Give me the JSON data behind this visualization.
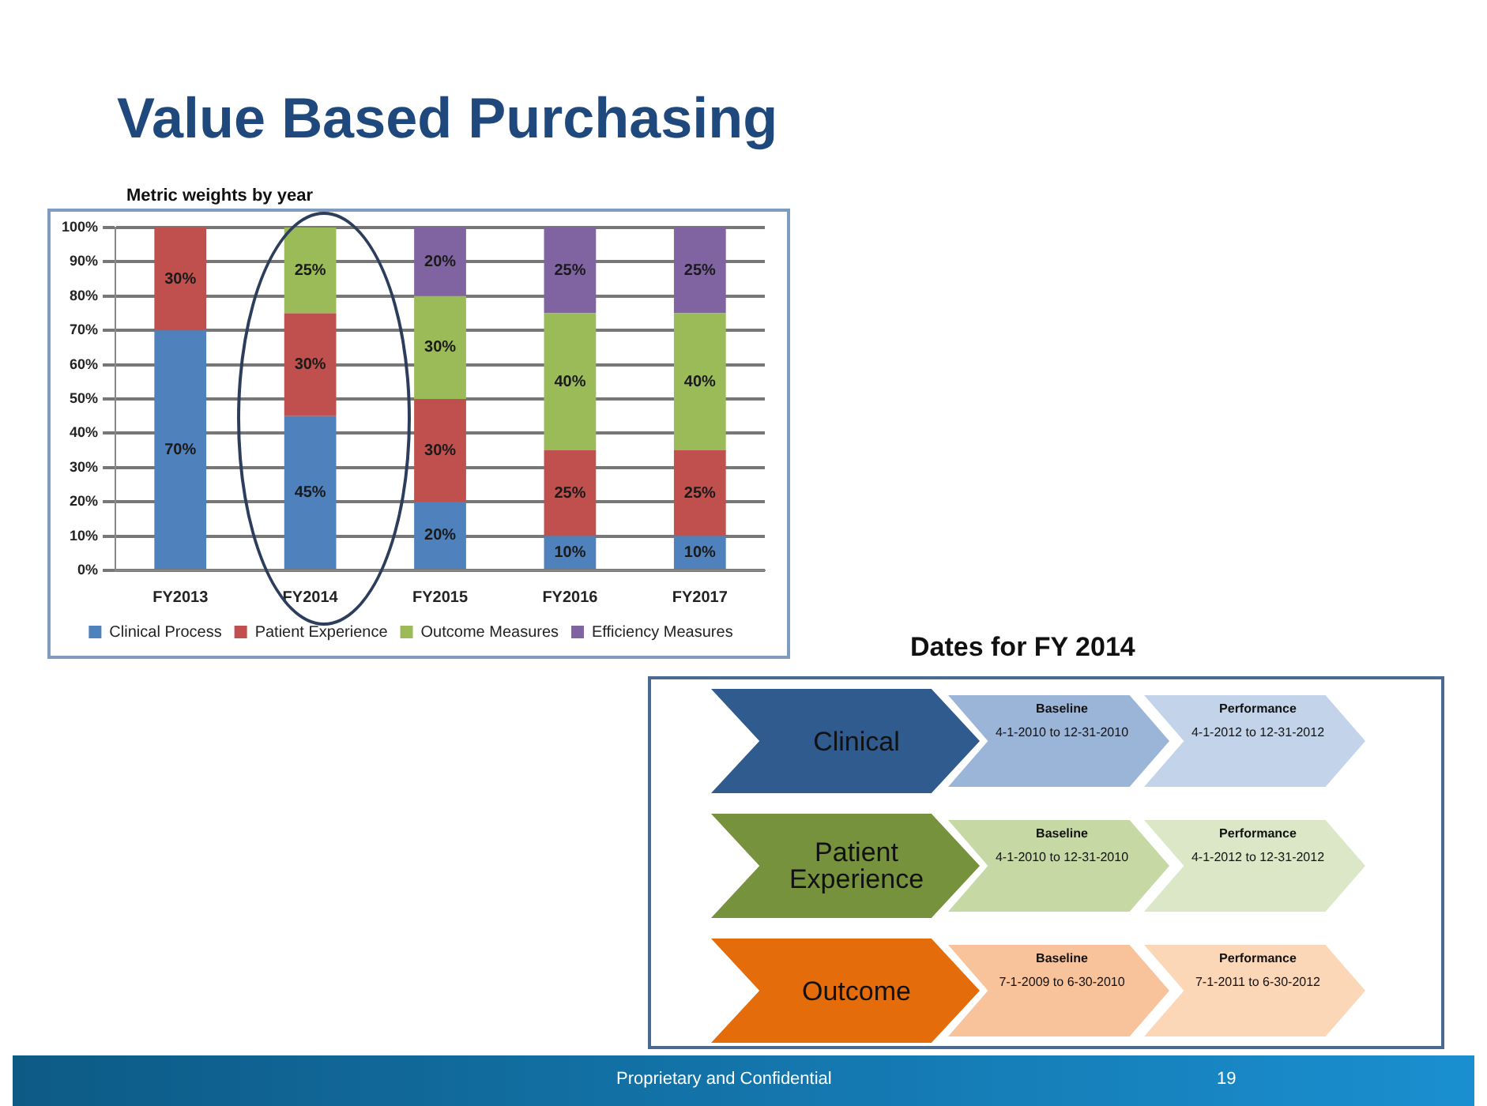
{
  "chart_data": [
    {
      "type": "bar",
      "title": "Value Based Purchasing",
      "subtitle": "Metric weights by year",
      "categories": [
        "FY2013",
        "FY2014",
        "FY2015",
        "FY2016",
        "FY2017"
      ],
      "stacked": true,
      "ylim": [
        0,
        100
      ],
      "yticks": [
        {
          "value": 0,
          "label": "0%"
        },
        {
          "value": 10,
          "label": "10%"
        },
        {
          "value": 20,
          "label": "20%"
        },
        {
          "value": 30,
          "label": "30%"
        },
        {
          "value": 40,
          "label": "40%"
        },
        {
          "value": 50,
          "label": "50%"
        },
        {
          "value": 60,
          "label": "60%"
        },
        {
          "value": 70,
          "label": "70%"
        },
        {
          "value": 80,
          "label": "80%"
        },
        {
          "value": 90,
          "label": "90%"
        },
        {
          "value": 100,
          "label": "100%"
        }
      ],
      "grid": "y",
      "legend": "bottom",
      "series": [
        {
          "name": "Clinical Process",
          "color": "#4f81bd",
          "values": [
            70,
            45,
            20,
            10,
            10
          ],
          "value_labels": [
            "70%",
            "45%",
            "20%",
            "10%",
            "10%"
          ]
        },
        {
          "name": "Patient Experience",
          "color": "#c0504d",
          "values": [
            30,
            30,
            30,
            25,
            25
          ],
          "value_labels": [
            "30%",
            "30%",
            "30%",
            "25%",
            "25%"
          ]
        },
        {
          "name": "Outcome Measures",
          "color": "#9bbb59",
          "values": [
            null,
            25,
            30,
            40,
            40
          ],
          "value_labels": [
            null,
            "25%",
            "30%",
            "40%",
            "40%"
          ]
        },
        {
          "name": "Efficiency Measures",
          "color": "#8064a2",
          "values": [
            null,
            null,
            20,
            25,
            25
          ],
          "value_labels": [
            null,
            null,
            "20%",
            "25%",
            "25%"
          ]
        }
      ],
      "annotations": [
        "Proprietary and Confidential",
        "19"
      ]
    },
    {
      "type": "other",
      "title": "Dates for FY 2014",
      "annotations": [
        "Clinical",
        "Baseline",
        "4-1-2010 to 12-31-2010",
        "Performance",
        "4-1-2012 to 12-31-2012",
        "Patient Experience",
        "Baseline",
        "4-1-2010 to 12-31-2010",
        "Performance",
        "4-1-2012 to 12-31-2012",
        "Outcome",
        "Baseline",
        "7-1-2009 to 6-30-2010",
        "Performance",
        "7-1-2011 to 6-30-2012"
      ]
    }
  ]
}
